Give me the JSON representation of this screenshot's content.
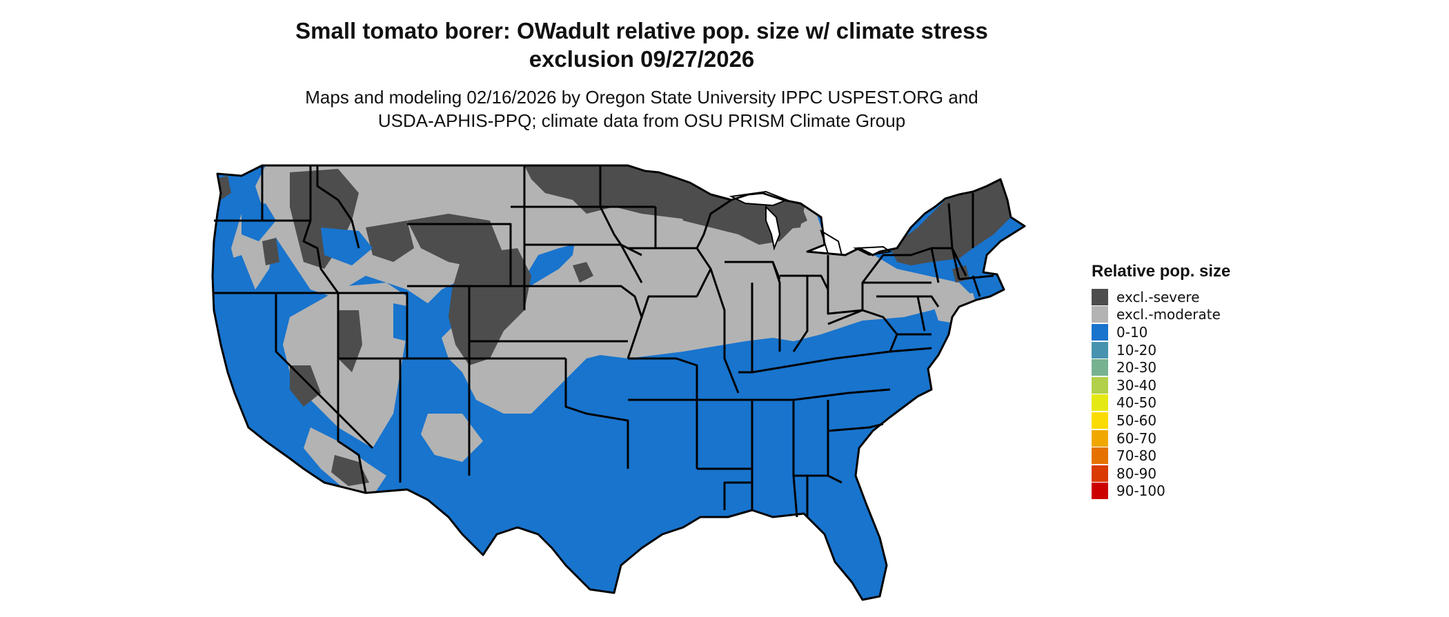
{
  "header": {
    "title_line1": "Small tomato borer: OWadult relative pop. size w/ climate stress",
    "title_line2": "exclusion 09/27/2026",
    "subtitle_line1": "Maps and modeling 02/16/2026 by Oregon State University IPPC USPEST.ORG and",
    "subtitle_line2": "USDA-APHIS-PPQ; climate data from OSU PRISM Climate Group"
  },
  "legend": {
    "title": "Relative pop. size",
    "items": [
      {
        "label": "excl.-severe",
        "color": "#4d4d4d"
      },
      {
        "label": "excl.-moderate",
        "color": "#b3b3b3"
      },
      {
        "label": "0-10",
        "color": "#1874cd"
      },
      {
        "label": "10-20",
        "color": "#4793af"
      },
      {
        "label": "20-30",
        "color": "#76b290"
      },
      {
        "label": "30-40",
        "color": "#b2d04a"
      },
      {
        "label": "40-50",
        "color": "#e5e913"
      },
      {
        "label": "50-60",
        "color": "#fadb04"
      },
      {
        "label": "60-70",
        "color": "#f0a800"
      },
      {
        "label": "70-80",
        "color": "#e57200"
      },
      {
        "label": "80-90",
        "color": "#d93b00"
      },
      {
        "label": "90-100",
        "color": "#cd0000"
      }
    ]
  },
  "map": {
    "region": "Contiguous United States",
    "colors": {
      "severe": "#4d4d4d",
      "moderate": "#b3b3b3",
      "low": "#1874cd",
      "border": "#000000"
    }
  }
}
